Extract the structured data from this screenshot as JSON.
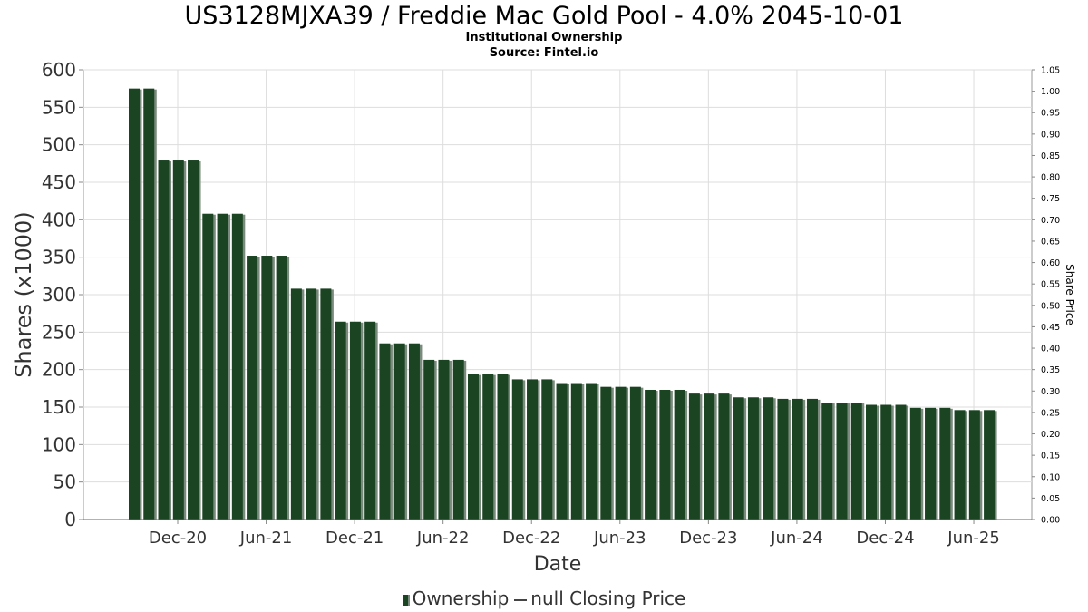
{
  "chart_data": {
    "type": "bar",
    "title": "US3128MJXA39 / Freddie Mac Gold Pool - 4.0% 2045-10-01",
    "subtitle_lines": [
      "Institutional Ownership",
      "Source: Fintel.io"
    ],
    "xlabel": "Date",
    "ylabel": "Shares (x1000)",
    "y2label": "Share Price",
    "ylim": [
      0,
      600
    ],
    "y2lim": [
      0,
      1.05
    ],
    "x_ticks": [
      "Dec-20",
      "Jun-21",
      "Dec-21",
      "Jun-22",
      "Dec-22",
      "Jun-23",
      "Dec-23",
      "Jun-24",
      "Dec-24",
      "Jun-25"
    ],
    "y_ticks": [
      0,
      50,
      100,
      150,
      200,
      250,
      300,
      350,
      400,
      450,
      500,
      550,
      600
    ],
    "y2_ticks": [
      "0.00",
      "0.05",
      "0.10",
      "0.15",
      "0.20",
      "0.25",
      "0.30",
      "0.35",
      "0.40",
      "0.45",
      "0.50",
      "0.55",
      "0.60",
      "0.65",
      "0.70",
      "0.75",
      "0.80",
      "0.85",
      "0.90",
      "0.95",
      "1.00",
      "1.05"
    ],
    "grid": true,
    "legend_position": "bottom",
    "series": [
      {
        "name": "Ownership",
        "values": [
          575,
          575,
          479,
          479,
          479,
          408,
          408,
          408,
          352,
          352,
          352,
          308,
          308,
          308,
          264,
          264,
          264,
          235,
          235,
          235,
          213,
          213,
          213,
          194,
          194,
          194,
          187,
          187,
          187,
          182,
          182,
          182,
          177,
          177,
          177,
          173,
          173,
          173,
          168,
          168,
          168,
          163,
          163,
          163,
          161,
          161,
          161,
          156,
          156,
          156,
          153,
          153,
          153,
          149,
          149,
          149,
          146,
          146,
          146
        ]
      }
    ],
    "legend": [
      {
        "label": "Ownership",
        "kind": "bar"
      },
      {
        "label": "null Closing Price",
        "kind": "line"
      }
    ],
    "colors": {
      "bar": "#1b4423",
      "bar_shadow": "#7a8a7c",
      "grid": "#dddddd",
      "axis": "#888888"
    }
  }
}
